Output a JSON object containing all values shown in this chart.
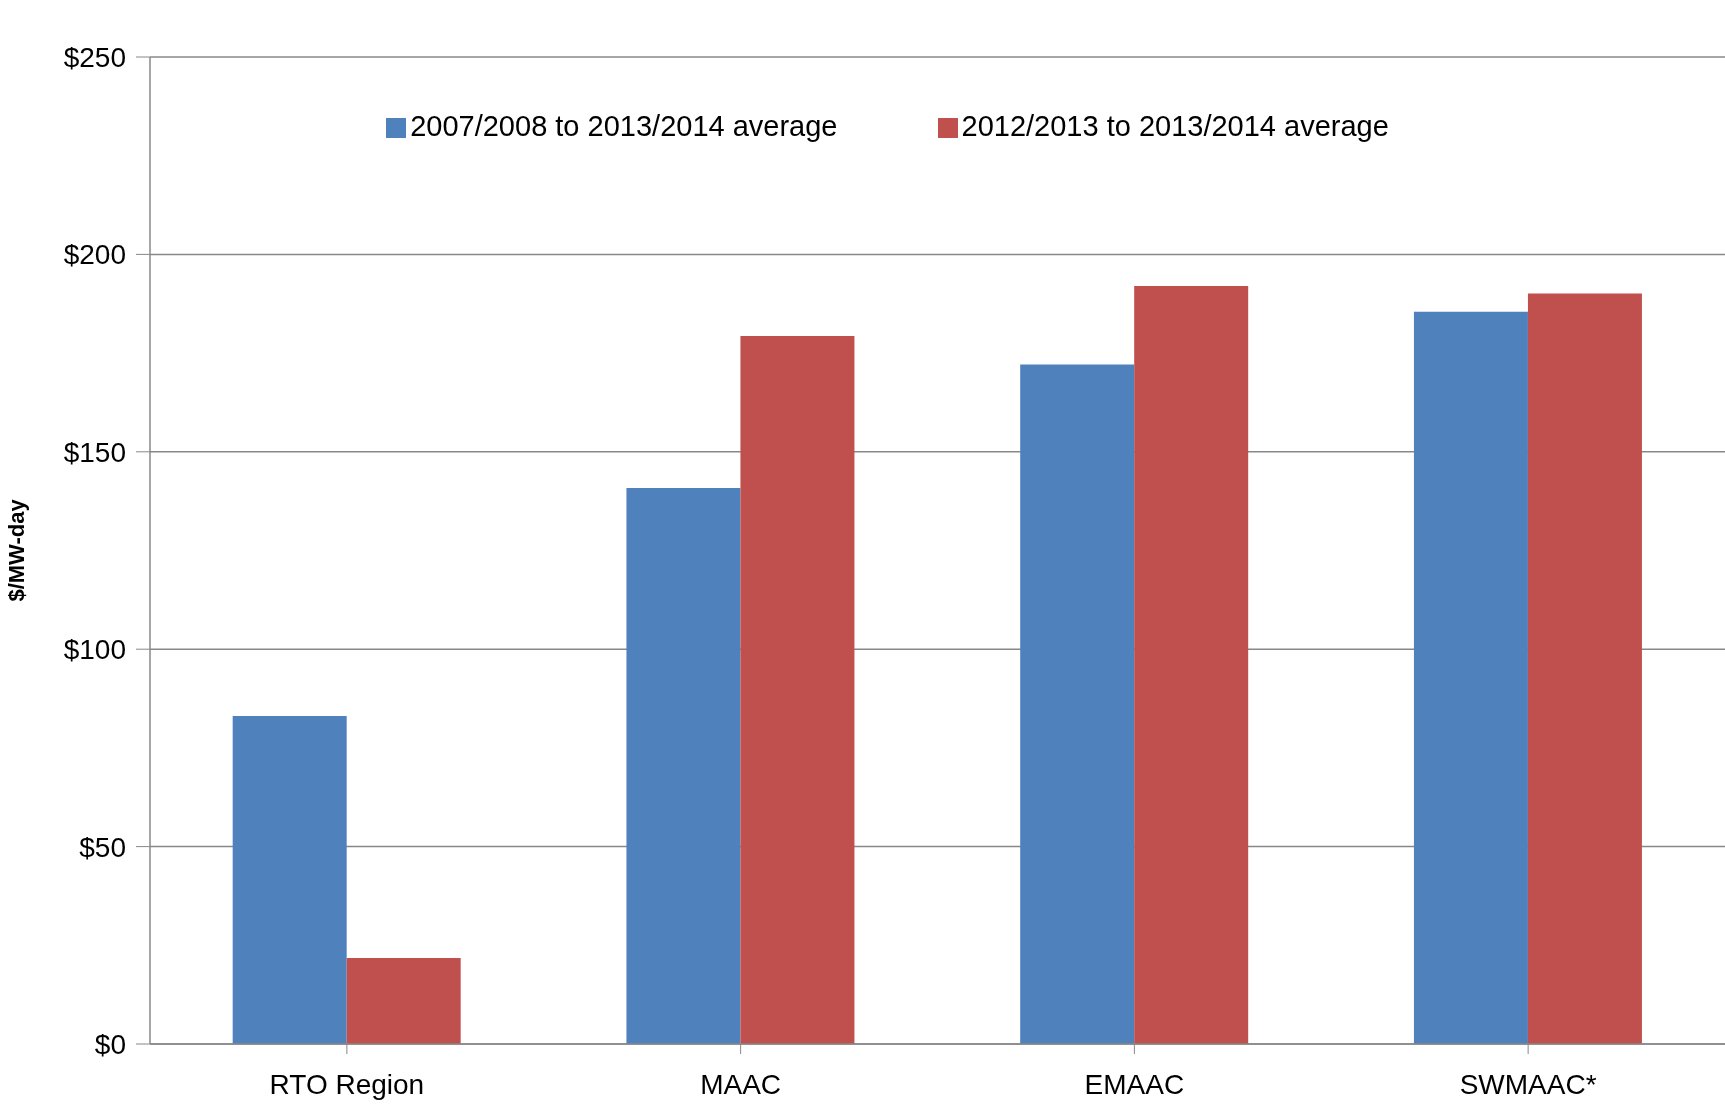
{
  "chart_data": {
    "type": "bar",
    "ylabel": "$/MW-day",
    "categories": [
      "RTO Region",
      "MAAC",
      "EMAAC",
      "SWMAAC*"
    ],
    "series": [
      {
        "name": "2007/2008 to 2013/2014 average",
        "color": "#4f81bd",
        "values": [
          83.1,
          140.8,
          172.1,
          185.5
        ]
      },
      {
        "name": "2012/2013 to 2013/2014 average",
        "color": "#c0504d",
        "values": [
          21.8,
          179.3,
          192.0,
          190.1
        ]
      }
    ],
    "ylim": [
      0,
      250
    ],
    "yticks": [
      {
        "value": 0,
        "label": "$0"
      },
      {
        "value": 50,
        "label": "$50"
      },
      {
        "value": 100,
        "label": "$100"
      },
      {
        "value": 150,
        "label": "$150"
      },
      {
        "value": 200,
        "label": "$200"
      },
      {
        "value": 250,
        "label": "$250"
      }
    ],
    "grid": "y",
    "legend": "top"
  }
}
